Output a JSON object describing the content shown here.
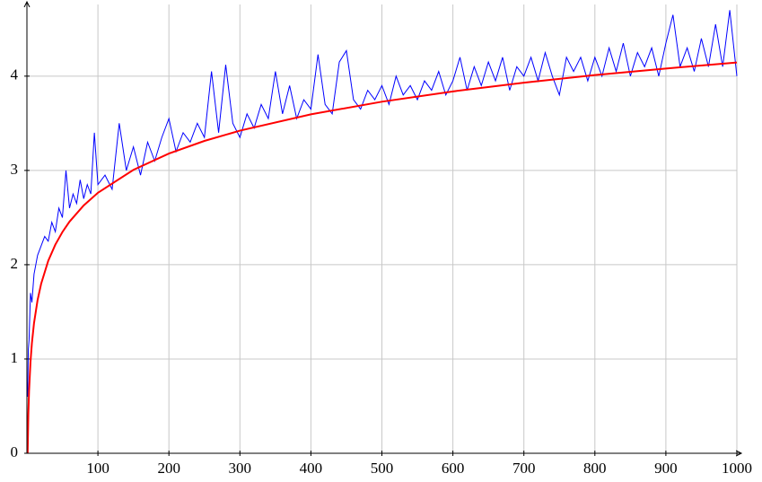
{
  "chart_data": {
    "type": "line",
    "xlim": [
      0,
      1000
    ],
    "ylim": [
      0,
      4.76
    ],
    "xticks": [
      100,
      200,
      300,
      400,
      500,
      600,
      700,
      800,
      900,
      1000
    ],
    "yticks": [
      0,
      1,
      2,
      3,
      4
    ],
    "grid": true,
    "series": [
      {
        "color": "#0000ff",
        "x": [
          1,
          2,
          3,
          5,
          7,
          10,
          15,
          20,
          25,
          30,
          35,
          40,
          45,
          50,
          55,
          60,
          65,
          70,
          75,
          80,
          85,
          90,
          95,
          100,
          110,
          120,
          130,
          140,
          150,
          160,
          170,
          180,
          190,
          200,
          210,
          220,
          230,
          240,
          250,
          260,
          270,
          280,
          290,
          300,
          310,
          320,
          330,
          340,
          350,
          360,
          370,
          380,
          390,
          400,
          410,
          420,
          430,
          440,
          450,
          460,
          470,
          480,
          490,
          500,
          510,
          520,
          530,
          540,
          550,
          560,
          570,
          580,
          590,
          600,
          610,
          620,
          630,
          640,
          650,
          660,
          670,
          680,
          690,
          700,
          710,
          720,
          730,
          740,
          750,
          760,
          770,
          780,
          790,
          800,
          810,
          820,
          830,
          840,
          850,
          860,
          870,
          880,
          890,
          900,
          910,
          920,
          930,
          940,
          950,
          960,
          970,
          980,
          990,
          1000
        ],
        "values": [
          0.6,
          1.1,
          1.2,
          1.7,
          1.6,
          1.9,
          2.1,
          2.2,
          2.3,
          2.25,
          2.45,
          2.35,
          2.6,
          2.5,
          3.0,
          2.6,
          2.75,
          2.65,
          2.9,
          2.7,
          2.85,
          2.75,
          3.4,
          2.85,
          2.95,
          2.8,
          3.5,
          3.0,
          3.25,
          2.95,
          3.3,
          3.1,
          3.35,
          3.55,
          3.2,
          3.4,
          3.3,
          3.5,
          3.35,
          4.05,
          3.4,
          4.12,
          3.5,
          3.35,
          3.6,
          3.45,
          3.7,
          3.55,
          4.05,
          3.6,
          3.9,
          3.55,
          3.75,
          3.65,
          4.23,
          3.7,
          3.6,
          4.15,
          4.27,
          3.75,
          3.65,
          3.85,
          3.75,
          3.9,
          3.7,
          4.0,
          3.8,
          3.9,
          3.75,
          3.95,
          3.85,
          4.05,
          3.8,
          3.95,
          4.2,
          3.85,
          4.1,
          3.9,
          4.15,
          3.95,
          4.2,
          3.85,
          4.1,
          4.0,
          4.2,
          3.95,
          4.25,
          4.0,
          3.8,
          4.2,
          4.05,
          4.2,
          3.95,
          4.2,
          4.0,
          4.3,
          4.05,
          4.35,
          4.0,
          4.25,
          4.1,
          4.3,
          4.0,
          4.35,
          4.65,
          4.1,
          4.3,
          4.05,
          4.4,
          4.1,
          4.55,
          4.1,
          4.7,
          4.0
        ]
      },
      {
        "color": "#ff0000",
        "x": [
          1,
          2,
          3,
          5,
          7,
          10,
          15,
          20,
          30,
          40,
          50,
          60,
          80,
          100,
          150,
          200,
          250,
          300,
          400,
          500,
          600,
          700,
          800,
          900,
          1000
        ],
        "values": [
          0,
          0.416,
          0.659,
          0.966,
          1.168,
          1.382,
          1.625,
          1.797,
          2.041,
          2.213,
          2.347,
          2.457,
          2.629,
          2.763,
          3.006,
          3.179,
          3.313,
          3.422,
          3.595,
          3.729,
          3.838,
          3.931,
          4.011,
          4.081,
          4.145
        ]
      }
    ]
  }
}
